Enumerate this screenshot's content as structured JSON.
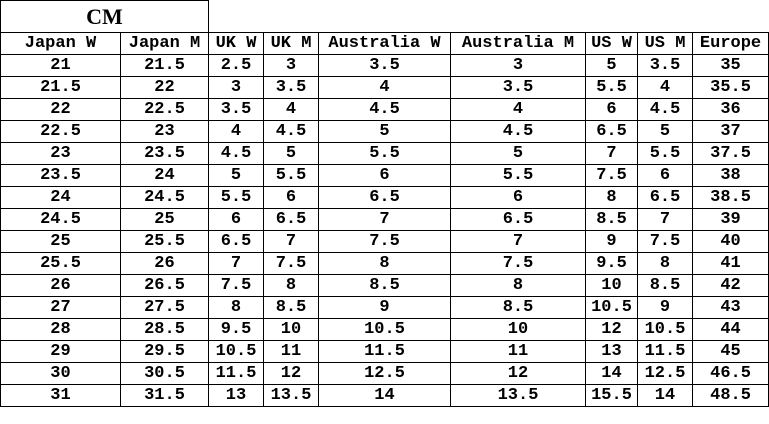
{
  "table": {
    "unit": "CM",
    "header": [
      "Japan W",
      "Japan M",
      "UK W",
      "UK M",
      "Australia W",
      "Australia M",
      "US W",
      "US M",
      "Europe"
    ],
    "rows": [
      [
        "21",
        "21.5",
        "2.5",
        "3",
        "3.5",
        "3",
        "5",
        "3.5",
        "35"
      ],
      [
        "21.5",
        "22",
        "3",
        "3.5",
        "4",
        "3.5",
        "5.5",
        "4",
        "35.5"
      ],
      [
        "22",
        "22.5",
        "3.5",
        "4",
        "4.5",
        "4",
        "6",
        "4.5",
        "36"
      ],
      [
        "22.5",
        "23",
        "4",
        "4.5",
        "5",
        "4.5",
        "6.5",
        "5",
        "37"
      ],
      [
        "23",
        "23.5",
        "4.5",
        "5",
        "5.5",
        "5",
        "7",
        "5.5",
        "37.5"
      ],
      [
        "23.5",
        "24",
        "5",
        "5.5",
        "6",
        "5.5",
        "7.5",
        "6",
        "38"
      ],
      [
        "24",
        "24.5",
        "5.5",
        "6",
        "6.5",
        "6",
        "8",
        "6.5",
        "38.5"
      ],
      [
        "24.5",
        "25",
        "6",
        "6.5",
        "7",
        "6.5",
        "8.5",
        "7",
        "39"
      ],
      [
        "25",
        "25.5",
        "6.5",
        "7",
        "7.5",
        "7",
        "9",
        "7.5",
        "40"
      ],
      [
        "25.5",
        "26",
        "7",
        "7.5",
        "8",
        "7.5",
        "9.5",
        "8",
        "41"
      ],
      [
        "26",
        "26.5",
        "7.5",
        "8",
        "8.5",
        "8",
        "10",
        "8.5",
        "42"
      ],
      [
        "27",
        "27.5",
        "8",
        "8.5",
        "9",
        "8.5",
        "10.5",
        "9",
        "43"
      ],
      [
        "28",
        "28.5",
        "9.5",
        "10",
        "10.5",
        "10",
        "12",
        "10.5",
        "44"
      ],
      [
        "29",
        "29.5",
        "10.5",
        "11",
        "11.5",
        "11",
        "13",
        "11.5",
        "45"
      ],
      [
        "30",
        "30.5",
        "11.5",
        "12",
        "12.5",
        "12",
        "14",
        "12.5",
        "46.5"
      ],
      [
        "31",
        "31.5",
        "13",
        "13.5",
        "14",
        "13.5",
        "15.5",
        "14",
        "48.5"
      ]
    ]
  }
}
